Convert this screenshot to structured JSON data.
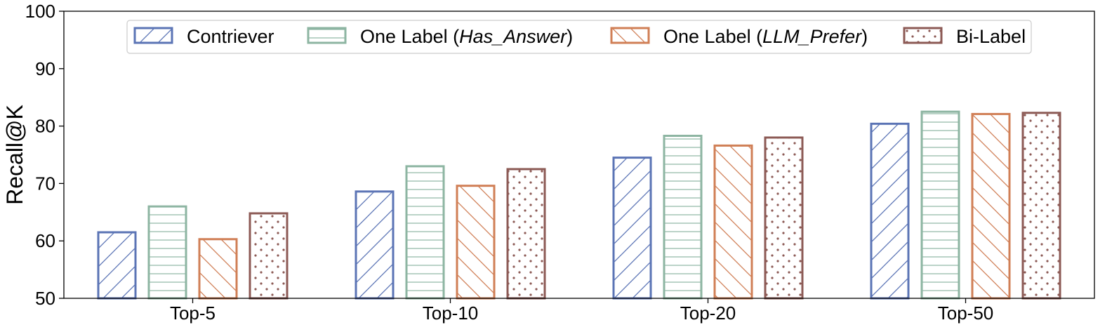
{
  "chart_data": {
    "type": "bar",
    "ylabel": "Recall@K",
    "xlabel": "",
    "ylim": [
      50,
      100
    ],
    "yticks": [
      50,
      60,
      70,
      80,
      90,
      100
    ],
    "categories": [
      "Top-5",
      "Top-10",
      "Top-20",
      "Top-50"
    ],
    "grid": false,
    "legend_position": "top",
    "series": [
      {
        "name": "Contriever",
        "legend_parts": [
          {
            "text": "Contriever",
            "italic": false
          }
        ],
        "color": "#5b74b5",
        "hatch": "forward-diagonal",
        "values": [
          61.5,
          68.6,
          74.5,
          80.4
        ]
      },
      {
        "name": "One Label (Has_Answer)",
        "legend_parts": [
          {
            "text": "One Label (",
            "italic": false
          },
          {
            "text": "Has_Answer",
            "italic": true
          },
          {
            "text": ")",
            "italic": false
          }
        ],
        "color": "#8db5a2",
        "hatch": "horizontal",
        "values": [
          66.0,
          73.0,
          78.3,
          82.5
        ]
      },
      {
        "name": "One Label (LLM_Prefer)",
        "legend_parts": [
          {
            "text": "One Label (",
            "italic": false
          },
          {
            "text": "LLM_Prefer",
            "italic": true
          },
          {
            "text": ")",
            "italic": false
          }
        ],
        "color": "#d07f56",
        "hatch": "back-diagonal",
        "values": [
          60.3,
          69.6,
          76.6,
          82.1
        ]
      },
      {
        "name": "Bi-Label",
        "legend_parts": [
          {
            "text": "Bi-Label",
            "italic": false
          }
        ],
        "color": "#8c5a55",
        "hatch": "dots",
        "values": [
          64.8,
          72.5,
          78.0,
          82.3
        ]
      }
    ]
  }
}
